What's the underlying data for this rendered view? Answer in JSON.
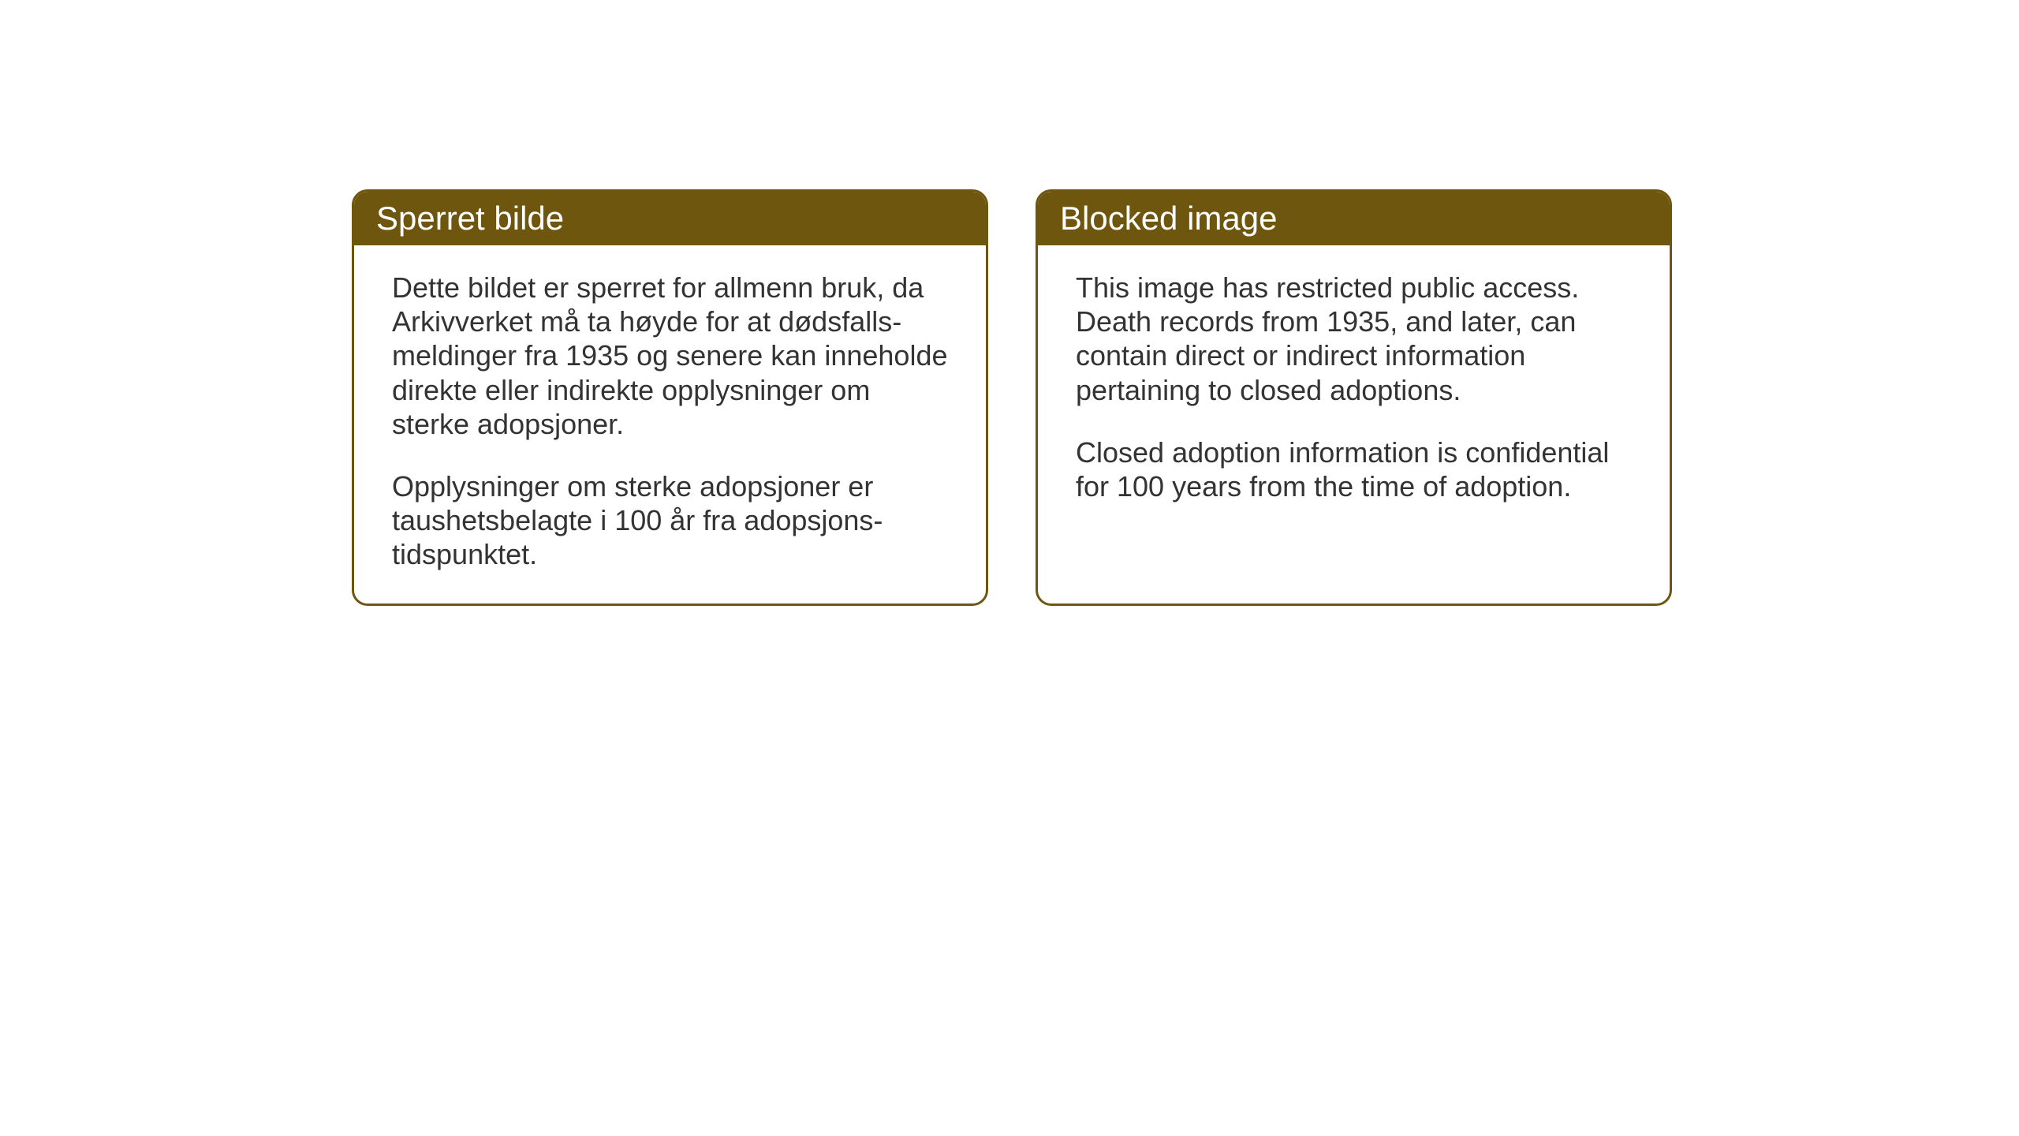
{
  "layout": {
    "background_color": "#ffffff",
    "card_border_color": "#6f560f",
    "card_header_bg_color": "#6f560f",
    "card_header_text_color": "#ffffff",
    "card_body_text_color": "#333333",
    "card_border_radius": 20,
    "card_border_width": 3,
    "header_fontsize": 42,
    "body_fontsize": 36
  },
  "cards": {
    "norwegian": {
      "title": "Sperret bilde",
      "paragraph1": "Dette bildet er sperret for allmenn bruk, da Arkivverket må ta høyde for at dødsfalls-meldinger fra 1935 og senere kan inneholde direkte eller indirekte opplysninger om sterke adopsjoner.",
      "paragraph2": "Opplysninger om sterke adopsjoner er taushetsbelagte i 100 år fra adopsjons-tidspunktet."
    },
    "english": {
      "title": "Blocked image",
      "paragraph1": "This image has restricted public access. Death records from 1935, and later, can contain direct or indirect information pertaining to closed adoptions.",
      "paragraph2": "Closed adoption information is confidential for 100 years from the time of adoption."
    }
  }
}
